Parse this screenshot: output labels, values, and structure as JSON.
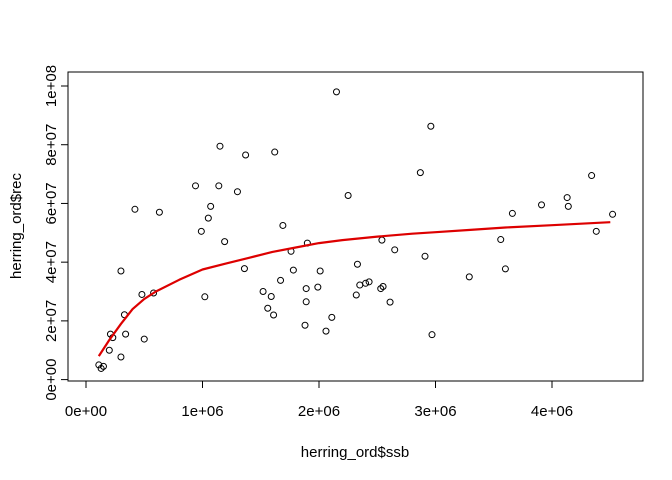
{
  "chart_data": {
    "type": "scatter",
    "xlabel": "herring_ord$ssb",
    "ylabel": "herring_ord$rec",
    "xlim": [
      0,
      4700000
    ],
    "ylim": [
      0,
      100000000
    ],
    "x_ticks": [
      0,
      1000000,
      2000000,
      3000000,
      4000000
    ],
    "x_tick_labels": [
      "0e+00",
      "1e+06",
      "2e+06",
      "3e+06",
      "4e+06"
    ],
    "y_ticks": [
      0,
      20000000,
      40000000,
      60000000,
      80000000,
      100000000
    ],
    "y_tick_labels": [
      "0e+00",
      "2e+07",
      "4e+07",
      "6e+07",
      "8e+07",
      "1e+08"
    ],
    "grid": false,
    "colors": {
      "points": "#000000",
      "fit_line": "#dd0000",
      "axes": "#000000",
      "background": "#ffffff"
    },
    "series": [
      {
        "type": "scatter",
        "marker": "open-circle",
        "points": [
          [
            110000,
            5000000
          ],
          [
            130000,
            3800000
          ],
          [
            150000,
            4500000
          ],
          [
            200000,
            10000000
          ],
          [
            210000,
            15500000
          ],
          [
            230000,
            14300000
          ],
          [
            300000,
            37000000
          ],
          [
            300000,
            7700000
          ],
          [
            330000,
            22100000
          ],
          [
            340000,
            15500000
          ],
          [
            420000,
            58000000
          ],
          [
            480000,
            29000000
          ],
          [
            500000,
            13800000
          ],
          [
            580000,
            29500000
          ],
          [
            630000,
            57000000
          ],
          [
            940000,
            66000000
          ],
          [
            990000,
            50500000
          ],
          [
            1020000,
            28200000
          ],
          [
            1050000,
            55000000
          ],
          [
            1070000,
            59000000
          ],
          [
            1140000,
            66000000
          ],
          [
            1150000,
            79500000
          ],
          [
            1190000,
            47000000
          ],
          [
            1300000,
            64000000
          ],
          [
            1360000,
            37800000
          ],
          [
            1370000,
            76500000
          ],
          [
            1520000,
            30000000
          ],
          [
            1560000,
            24300000
          ],
          [
            1590000,
            28300000
          ],
          [
            1610000,
            22000000
          ],
          [
            1620000,
            77500000
          ],
          [
            1670000,
            33800000
          ],
          [
            1690000,
            52500000
          ],
          [
            1760000,
            43700000
          ],
          [
            1780000,
            37300000
          ],
          [
            1880000,
            18500000
          ],
          [
            1890000,
            26500000
          ],
          [
            1890000,
            31000000
          ],
          [
            1900000,
            46500000
          ],
          [
            1990000,
            31500000
          ],
          [
            2010000,
            37000000
          ],
          [
            2060000,
            16500000
          ],
          [
            2110000,
            21200000
          ],
          [
            2150000,
            98000000
          ],
          [
            2250000,
            62700000
          ],
          [
            2320000,
            28800000
          ],
          [
            2330000,
            39300000
          ],
          [
            2350000,
            32200000
          ],
          [
            2400000,
            32800000
          ],
          [
            2430000,
            33300000
          ],
          [
            2530000,
            31000000
          ],
          [
            2540000,
            47500000
          ],
          [
            2550000,
            31700000
          ],
          [
            2610000,
            26400000
          ],
          [
            2650000,
            44200000
          ],
          [
            2870000,
            70500000
          ],
          [
            2910000,
            42000000
          ],
          [
            2960000,
            86300000
          ],
          [
            2970000,
            15300000
          ],
          [
            3290000,
            35000000
          ],
          [
            3560000,
            47700000
          ],
          [
            3600000,
            37700000
          ],
          [
            3660000,
            56600000
          ],
          [
            3910000,
            59500000
          ],
          [
            4130000,
            62000000
          ],
          [
            4140000,
            59000000
          ],
          [
            4340000,
            69500000
          ],
          [
            4380000,
            50500000
          ],
          [
            4520000,
            56300000
          ]
        ]
      },
      {
        "type": "line",
        "points": [
          [
            110000,
            8000000
          ],
          [
            200000,
            13500000
          ],
          [
            300000,
            19000000
          ],
          [
            400000,
            24000000
          ],
          [
            500000,
            27500000
          ],
          [
            600000,
            30000000
          ],
          [
            800000,
            34000000
          ],
          [
            1000000,
            37500000
          ],
          [
            1200000,
            39500000
          ],
          [
            1400000,
            41500000
          ],
          [
            1600000,
            43500000
          ],
          [
            1800000,
            45000000
          ],
          [
            2000000,
            46500000
          ],
          [
            2200000,
            47500000
          ],
          [
            2500000,
            48700000
          ],
          [
            2800000,
            49700000
          ],
          [
            3000000,
            50200000
          ],
          [
            3300000,
            51000000
          ],
          [
            3600000,
            51800000
          ],
          [
            4000000,
            52600000
          ],
          [
            4500000,
            53600000
          ]
        ]
      }
    ]
  }
}
